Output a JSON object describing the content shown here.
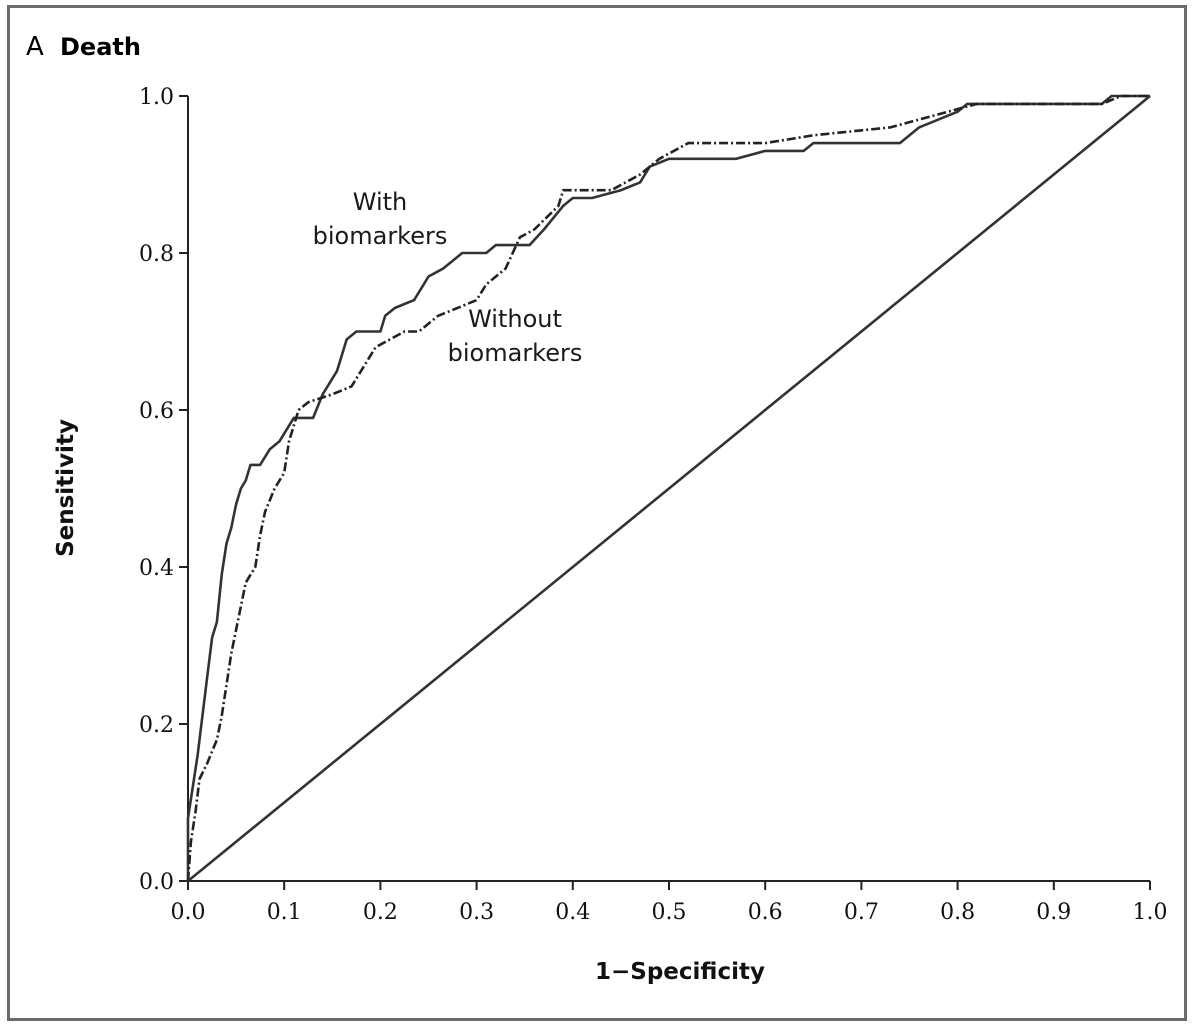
{
  "chart_data": {
    "type": "line",
    "panel_letter": "A",
    "title": "Death",
    "xlabel": "1−Specificity",
    "ylabel": "Sensitivity",
    "xlim": [
      0.0,
      1.0
    ],
    "ylim": [
      0.0,
      1.0
    ],
    "x_ticks": [
      "0.0",
      "0.1",
      "0.2",
      "0.3",
      "0.4",
      "0.5",
      "0.6",
      "0.7",
      "0.8",
      "0.9",
      "1.0"
    ],
    "y_ticks": [
      "0.0",
      "0.2",
      "0.4",
      "0.6",
      "0.8",
      "1.0"
    ],
    "grid": false,
    "annotations": [
      {
        "lines": [
          "With",
          "biomarkers"
        ],
        "series": "with_biomarkers"
      },
      {
        "lines": [
          "Without",
          "biomarkers"
        ],
        "series": "without_biomarkers"
      }
    ],
    "series": [
      {
        "id": "with_biomarkers",
        "style": "solid",
        "color": "#333333",
        "points": [
          [
            0.0,
            0.0
          ],
          [
            0.0,
            0.08
          ],
          [
            0.005,
            0.12
          ],
          [
            0.01,
            0.16
          ],
          [
            0.015,
            0.21
          ],
          [
            0.02,
            0.26
          ],
          [
            0.025,
            0.31
          ],
          [
            0.03,
            0.33
          ],
          [
            0.035,
            0.39
          ],
          [
            0.04,
            0.43
          ],
          [
            0.045,
            0.45
          ],
          [
            0.05,
            0.48
          ],
          [
            0.055,
            0.5
          ],
          [
            0.06,
            0.51
          ],
          [
            0.065,
            0.53
          ],
          [
            0.075,
            0.53
          ],
          [
            0.085,
            0.55
          ],
          [
            0.095,
            0.56
          ],
          [
            0.1,
            0.57
          ],
          [
            0.11,
            0.59
          ],
          [
            0.13,
            0.59
          ],
          [
            0.14,
            0.62
          ],
          [
            0.155,
            0.65
          ],
          [
            0.165,
            0.69
          ],
          [
            0.175,
            0.7
          ],
          [
            0.2,
            0.7
          ],
          [
            0.205,
            0.72
          ],
          [
            0.215,
            0.73
          ],
          [
            0.235,
            0.74
          ],
          [
            0.245,
            0.76
          ],
          [
            0.25,
            0.77
          ],
          [
            0.265,
            0.78
          ],
          [
            0.275,
            0.79
          ],
          [
            0.285,
            0.8
          ],
          [
            0.31,
            0.8
          ],
          [
            0.32,
            0.81
          ],
          [
            0.355,
            0.81
          ],
          [
            0.37,
            0.83
          ],
          [
            0.39,
            0.86
          ],
          [
            0.4,
            0.87
          ],
          [
            0.42,
            0.87
          ],
          [
            0.45,
            0.88
          ],
          [
            0.47,
            0.89
          ],
          [
            0.48,
            0.91
          ],
          [
            0.5,
            0.92
          ],
          [
            0.57,
            0.92
          ],
          [
            0.6,
            0.93
          ],
          [
            0.64,
            0.93
          ],
          [
            0.65,
            0.94
          ],
          [
            0.74,
            0.94
          ],
          [
            0.76,
            0.96
          ],
          [
            0.8,
            0.98
          ],
          [
            0.81,
            0.99
          ],
          [
            0.95,
            0.99
          ],
          [
            0.96,
            1.0
          ],
          [
            1.0,
            1.0
          ]
        ]
      },
      {
        "id": "without_biomarkers",
        "style": "dash-dot",
        "color": "#222222",
        "points": [
          [
            0.0,
            0.0
          ],
          [
            0.003,
            0.05
          ],
          [
            0.008,
            0.09
          ],
          [
            0.012,
            0.13
          ],
          [
            0.02,
            0.15
          ],
          [
            0.03,
            0.18
          ],
          [
            0.035,
            0.21
          ],
          [
            0.04,
            0.25
          ],
          [
            0.045,
            0.29
          ],
          [
            0.05,
            0.32
          ],
          [
            0.055,
            0.35
          ],
          [
            0.06,
            0.38
          ],
          [
            0.07,
            0.4
          ],
          [
            0.075,
            0.44
          ],
          [
            0.08,
            0.47
          ],
          [
            0.09,
            0.5
          ],
          [
            0.1,
            0.52
          ],
          [
            0.105,
            0.56
          ],
          [
            0.115,
            0.6
          ],
          [
            0.125,
            0.61
          ],
          [
            0.15,
            0.62
          ],
          [
            0.17,
            0.63
          ],
          [
            0.185,
            0.66
          ],
          [
            0.195,
            0.68
          ],
          [
            0.21,
            0.69
          ],
          [
            0.225,
            0.7
          ],
          [
            0.24,
            0.7
          ],
          [
            0.26,
            0.72
          ],
          [
            0.28,
            0.73
          ],
          [
            0.3,
            0.74
          ],
          [
            0.31,
            0.76
          ],
          [
            0.33,
            0.78
          ],
          [
            0.345,
            0.82
          ],
          [
            0.36,
            0.83
          ],
          [
            0.385,
            0.86
          ],
          [
            0.39,
            0.88
          ],
          [
            0.43,
            0.88
          ],
          [
            0.44,
            0.88
          ],
          [
            0.47,
            0.9
          ],
          [
            0.49,
            0.92
          ],
          [
            0.52,
            0.94
          ],
          [
            0.6,
            0.94
          ],
          [
            0.65,
            0.95
          ],
          [
            0.73,
            0.96
          ],
          [
            0.79,
            0.98
          ],
          [
            0.82,
            0.99
          ],
          [
            0.95,
            0.99
          ],
          [
            0.97,
            1.0
          ],
          [
            1.0,
            1.0
          ]
        ]
      },
      {
        "id": "reference",
        "style": "solid",
        "color": "#333333",
        "points": [
          [
            0.0,
            0.0
          ],
          [
            1.0,
            1.0
          ]
        ]
      }
    ]
  }
}
